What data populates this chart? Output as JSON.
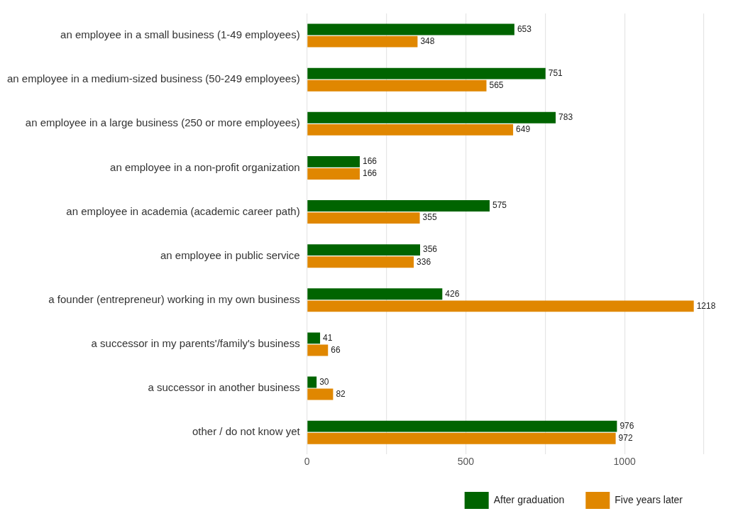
{
  "chart_data": {
    "type": "bar",
    "orientation": "horizontal",
    "categories": [
      "an employee in a small business (1-49 employees)",
      "an employee in a medium-sized business (50-249 employees)",
      "an employee in a large business (250 or more employees)",
      "an employee in a non-profit organization",
      "an employee in academia (academic career path)",
      "an employee in public service",
      "a founder (entrepreneur) working in my own business",
      "a successor in my parents'/family's business",
      "a successor in another business",
      "other / do not know yet"
    ],
    "series": [
      {
        "name": "After graduation",
        "color": "#006400",
        "values": [
          653,
          751,
          783,
          166,
          575,
          356,
          426,
          41,
          30,
          976
        ]
      },
      {
        "name": "Five years later",
        "color": "#e08700",
        "values": [
          348,
          565,
          649,
          166,
          355,
          336,
          1218,
          66,
          82,
          972
        ]
      }
    ],
    "xlim": [
      0,
      1250
    ],
    "xticks": [
      0,
      {
        "value": 250,
        "label": null
      },
      500,
      {
        "value": 750,
        "label": null
      },
      1000,
      {
        "value": 1250,
        "label": null
      }
    ],
    "grid": "x",
    "legend": "bottom right",
    "data_labels": true
  }
}
